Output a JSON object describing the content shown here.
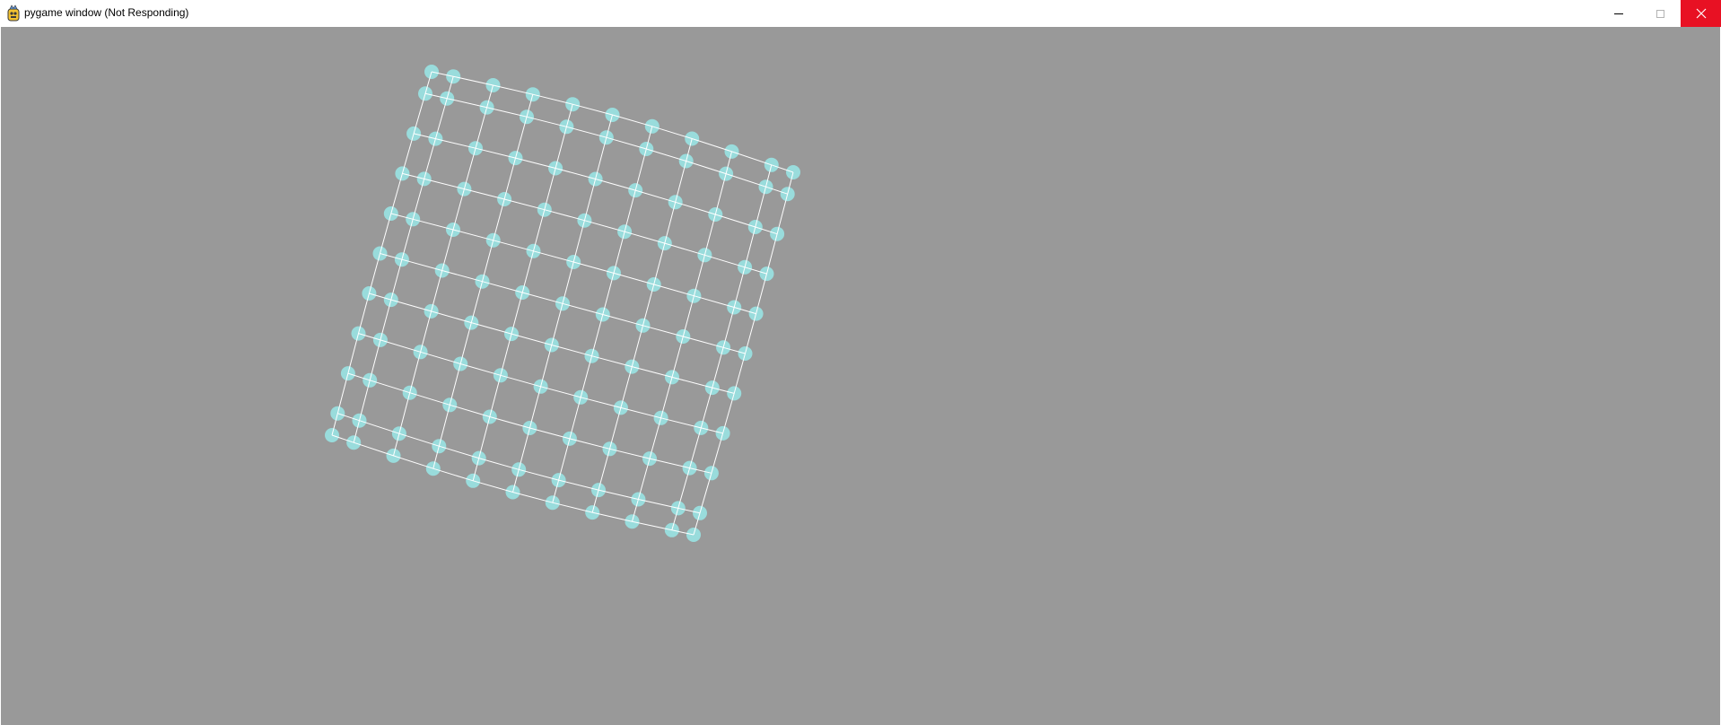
{
  "window": {
    "title": "pygame window (Not Responding)",
    "icon": "pygame-snake-icon",
    "controls": {
      "minimize_icon": "minimize-icon",
      "maximize_icon": "maximize-icon",
      "close_icon": "close-icon"
    }
  },
  "colors": {
    "canvas_background": "#999999",
    "node_fill": "#99dcdc",
    "edge_stroke": "#ffffff",
    "close_button": "#e81123"
  },
  "mesh": {
    "rows": 11,
    "cols": 11
  }
}
